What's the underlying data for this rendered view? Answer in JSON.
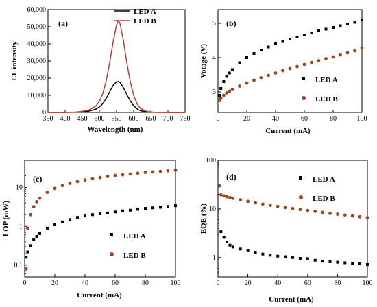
{
  "chart_data": [
    {
      "panel": "(a)",
      "type": "line",
      "xlabel": "Wavelength (nm)",
      "ylabel": "EL intensity",
      "xlim": [
        350,
        750
      ],
      "ylim": [
        0,
        60000
      ],
      "x_ticks": [
        350,
        400,
        450,
        500,
        550,
        600,
        650,
        700,
        750
      ],
      "y_ticks": [
        0,
        10000,
        20000,
        30000,
        40000,
        50000,
        60000
      ],
      "x_tick_labels": [
        "350",
        "400",
        "450",
        "500",
        "550",
        "600",
        "650",
        "700",
        "750"
      ],
      "y_tick_labels": [
        "0",
        "10,000",
        "20,000",
        "30,000",
        "40,000",
        "50,000",
        "60,000"
      ],
      "legend_position": "top-right",
      "series": [
        {
          "name": "LED A",
          "color": "#000000",
          "x": [
            350,
            400,
            430,
            450,
            470,
            490,
            500,
            510,
            520,
            530,
            540,
            550,
            555,
            560,
            570,
            580,
            590,
            600,
            610,
            620,
            640,
            660,
            700,
            750
          ],
          "y": [
            0,
            0,
            100,
            300,
            800,
            2000,
            3200,
            5200,
            8200,
            12000,
            15800,
            17800,
            18000,
            17600,
            14500,
            10500,
            6800,
            3900,
            2100,
            1000,
            250,
            50,
            0,
            0
          ]
        },
        {
          "name": "LED B",
          "color": "#c0392b",
          "x": [
            350,
            400,
            430,
            450,
            470,
            490,
            500,
            510,
            520,
            530,
            540,
            550,
            555,
            560,
            570,
            580,
            590,
            600,
            610,
            620,
            640,
            660,
            700,
            750
          ],
          "y": [
            0,
            0,
            200,
            600,
            1500,
            3800,
            6500,
            11000,
            18500,
            29000,
            41000,
            51000,
            53500,
            52000,
            42000,
            29000,
            18000,
            10000,
            5000,
            2300,
            500,
            100,
            0,
            0
          ]
        }
      ]
    },
    {
      "panel": "(b)",
      "type": "scatter",
      "xlabel": "Current (mA)",
      "ylabel": "Votage (V)",
      "xlim": [
        0,
        100
      ],
      "ylim": [
        2.4,
        5.4
      ],
      "x_ticks": [
        0,
        20,
        40,
        60,
        80,
        100
      ],
      "y_ticks": [
        3,
        4,
        5
      ],
      "x_tick_labels": [
        "0",
        "20",
        "40",
        "60",
        "80",
        "100"
      ],
      "y_tick_labels": [
        "3",
        "4",
        "5"
      ],
      "legend_position": "bottom-right",
      "series": [
        {
          "name": "LED A",
          "color": "#000000",
          "marker": "square",
          "x": [
            1,
            2,
            4,
            6,
            8,
            10,
            15,
            20,
            25,
            30,
            35,
            40,
            45,
            50,
            55,
            60,
            65,
            70,
            75,
            80,
            85,
            90,
            95,
            100
          ],
          "y": [
            2.9,
            3.1,
            3.3,
            3.45,
            3.55,
            3.65,
            3.85,
            4.0,
            4.12,
            4.22,
            4.31,
            4.4,
            4.47,
            4.54,
            4.6,
            4.66,
            4.72,
            4.78,
            4.83,
            4.88,
            4.93,
            4.98,
            5.03,
            5.1
          ]
        },
        {
          "name": "LED B",
          "color": "#a0431f",
          "marker": "circle",
          "x": [
            1,
            2,
            4,
            6,
            8,
            10,
            15,
            20,
            25,
            30,
            35,
            40,
            45,
            50,
            55,
            60,
            65,
            70,
            75,
            80,
            85,
            90,
            95,
            100
          ],
          "y": [
            2.75,
            2.82,
            2.9,
            2.97,
            3.02,
            3.07,
            3.17,
            3.26,
            3.34,
            3.41,
            3.48,
            3.55,
            3.62,
            3.68,
            3.74,
            3.8,
            3.86,
            3.91,
            3.97,
            4.02,
            4.08,
            4.14,
            4.2,
            4.28
          ]
        }
      ]
    },
    {
      "panel": "(c)",
      "type": "scatter",
      "xlabel": "Current (mA)",
      "ylabel": "LOP (mW)",
      "xscale": "linear",
      "yscale": "log",
      "xlim": [
        0,
        100
      ],
      "ylim": [
        0.05,
        50
      ],
      "x_ticks": [
        0,
        20,
        40,
        60,
        80,
        100
      ],
      "y_ticks": [
        0.1,
        1,
        10
      ],
      "x_tick_labels": [
        "0",
        "20",
        "40",
        "60",
        "80",
        "100"
      ],
      "y_tick_labels": [
        "0.1",
        "1",
        "10"
      ],
      "legend_position": "bottom-right",
      "series": [
        {
          "name": "LED A",
          "color": "#000000",
          "marker": "square",
          "x": [
            1,
            2,
            4,
            6,
            8,
            10,
            15,
            20,
            25,
            30,
            35,
            40,
            45,
            50,
            55,
            60,
            65,
            70,
            75,
            80,
            85,
            90,
            95,
            100
          ],
          "y": [
            0.16,
            0.22,
            0.32,
            0.45,
            0.55,
            0.65,
            0.9,
            1.1,
            1.3,
            1.5,
            1.7,
            1.85,
            2.0,
            2.1,
            2.2,
            2.35,
            2.5,
            2.6,
            2.75,
            2.9,
            3.0,
            3.1,
            3.25,
            3.4
          ]
        },
        {
          "name": "LED B",
          "color": "#a0431f",
          "marker": "circle",
          "x": [
            1,
            2,
            4,
            6,
            8,
            10,
            15,
            20,
            25,
            30,
            35,
            40,
            45,
            50,
            55,
            60,
            65,
            70,
            75,
            80,
            85,
            90,
            95,
            100
          ],
          "y": [
            0.08,
            0.9,
            2.0,
            3.2,
            4.3,
            5.3,
            7.5,
            9.5,
            11.2,
            12.8,
            14.2,
            15.6,
            16.8,
            18.0,
            19.2,
            20.3,
            21.3,
            22.3,
            23.3,
            24.3,
            25.2,
            26.0,
            27.0,
            28.0
          ]
        }
      ]
    },
    {
      "panel": "(d)",
      "type": "scatter",
      "xlabel": "Current (mA)",
      "ylabel": "EQE (%)",
      "xscale": "linear",
      "yscale": "log",
      "xlim": [
        0,
        100
      ],
      "ylim": [
        0.4,
        100
      ],
      "x_ticks": [
        0,
        20,
        40,
        60,
        80,
        100
      ],
      "y_ticks": [
        1,
        10,
        100
      ],
      "x_tick_labels": [
        "0",
        "20",
        "40",
        "60",
        "80",
        "100"
      ],
      "y_tick_labels": [
        "1",
        "10",
        "100"
      ],
      "legend_position": "top-right",
      "series": [
        {
          "name": "LED A",
          "color": "#000000",
          "marker": "square",
          "x": [
            2,
            4,
            6,
            8,
            10,
            15,
            20,
            25,
            30,
            35,
            40,
            45,
            50,
            55,
            60,
            65,
            70,
            75,
            80,
            85,
            90,
            95,
            100
          ],
          "y": [
            3.4,
            2.6,
            2.1,
            1.8,
            1.65,
            1.5,
            1.38,
            1.25,
            1.18,
            1.12,
            1.07,
            1.04,
            1.0,
            0.96,
            0.95,
            0.88,
            0.84,
            0.82,
            0.8,
            0.78,
            0.76,
            0.74,
            0.72
          ]
        },
        {
          "name": "LED B",
          "color": "#a0431f",
          "marker": "circle",
          "x": [
            1,
            2,
            4,
            6,
            8,
            10,
            15,
            20,
            25,
            30,
            35,
            40,
            45,
            50,
            55,
            60,
            65,
            70,
            75,
            80,
            85,
            90,
            95,
            100
          ],
          "y": [
            30,
            19.5,
            18.5,
            17.8,
            17.2,
            16.6,
            15.4,
            14.3,
            13.4,
            12.6,
            11.9,
            11.3,
            10.7,
            10.2,
            9.7,
            9.3,
            8.9,
            8.5,
            8.1,
            7.8,
            7.5,
            7.2,
            6.9,
            6.6
          ]
        }
      ]
    }
  ]
}
